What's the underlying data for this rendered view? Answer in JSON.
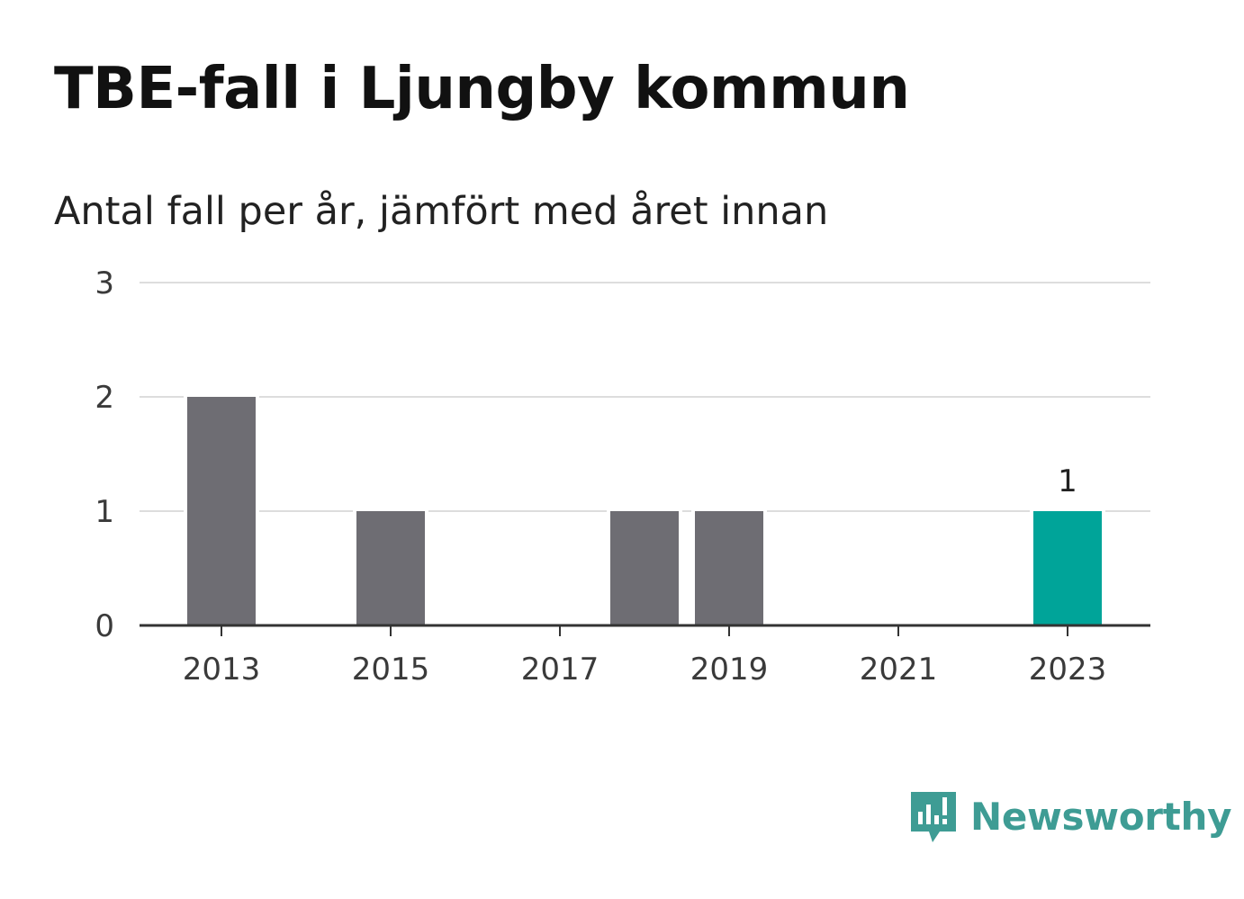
{
  "title": "TBE-fall i Ljungby kommun",
  "subtitle": "Antal fall per år, jämfört med året innan",
  "brand": {
    "name": "Newsworthy",
    "color": "#3e9c94",
    "icon": "newsworthy-logo-icon"
  },
  "colors": {
    "bar": "#6e6d73",
    "highlight": "#00a499",
    "grid": "#dddddd",
    "axis": "#333333"
  },
  "chart_data": {
    "type": "bar",
    "categories": [
      "2013",
      "2014",
      "2015",
      "2016",
      "2017",
      "2018",
      "2019",
      "2020",
      "2021",
      "2022",
      "2023"
    ],
    "values": [
      2,
      0,
      1,
      0,
      0,
      1,
      1,
      0,
      0,
      0,
      1
    ],
    "highlight_index": 10,
    "data_labels": [
      {
        "category": "2023",
        "value": "1"
      }
    ],
    "x_tick_labels": [
      "2013",
      "2015",
      "2017",
      "2019",
      "2021",
      "2023"
    ],
    "y_ticks": [
      "0",
      "1",
      "2",
      "3"
    ],
    "ylim": [
      0,
      3
    ],
    "grid": true,
    "xlabel": "",
    "ylabel": ""
  }
}
